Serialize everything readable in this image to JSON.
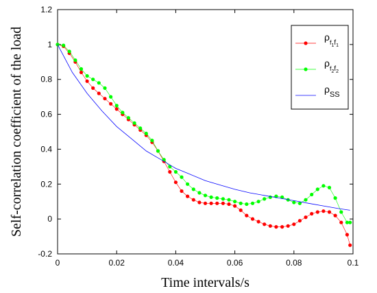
{
  "chart_data": {
    "type": "line",
    "xlabel": "Time intervals/s",
    "ylabel": "Self-correlation coefficient of the load",
    "xlim": [
      0,
      0.1
    ],
    "ylim": [
      -0.2,
      1.2
    ],
    "xticks": [
      "0",
      "0.02",
      "0.04",
      "0.06",
      "0.08",
      "0.1"
    ],
    "yticks": [
      "-0.2",
      "0",
      "0.2",
      "0.4",
      "0.6",
      "0.8",
      "1",
      "1.2"
    ],
    "grid": false,
    "legend_position": "top-right",
    "series": [
      {
        "name": "ρf1f1",
        "legend_main": "ρ",
        "legend_sub": "f",
        "legend_sub2": "1",
        "legend_sub3": "f",
        "legend_sub4": "1",
        "color": "#ff0000",
        "marker": "dot",
        "x": [
          0,
          0.002,
          0.004,
          0.006,
          0.008,
          0.01,
          0.012,
          0.014,
          0.016,
          0.018,
          0.02,
          0.022,
          0.024,
          0.026,
          0.028,
          0.03,
          0.032,
          0.034,
          0.036,
          0.038,
          0.04,
          0.042,
          0.044,
          0.046,
          0.048,
          0.05,
          0.052,
          0.054,
          0.056,
          0.058,
          0.06,
          0.062,
          0.064,
          0.066,
          0.068,
          0.07,
          0.072,
          0.074,
          0.076,
          0.078,
          0.08,
          0.082,
          0.084,
          0.086,
          0.088,
          0.09,
          0.092,
          0.094,
          0.096,
          0.098,
          0.099
        ],
        "y": [
          1.0,
          0.99,
          0.95,
          0.9,
          0.84,
          0.79,
          0.75,
          0.72,
          0.69,
          0.66,
          0.63,
          0.6,
          0.57,
          0.54,
          0.51,
          0.48,
          0.44,
          0.39,
          0.33,
          0.27,
          0.21,
          0.16,
          0.13,
          0.11,
          0.095,
          0.09,
          0.09,
          0.09,
          0.09,
          0.085,
          0.075,
          0.05,
          0.02,
          0.0,
          -0.015,
          -0.03,
          -0.04,
          -0.045,
          -0.045,
          -0.04,
          -0.03,
          -0.01,
          0.01,
          0.03,
          0.04,
          0.045,
          0.04,
          0.02,
          -0.02,
          -0.09,
          -0.15
        ]
      },
      {
        "name": "ρf2f2",
        "legend_main": "ρ",
        "legend_sub": "f",
        "legend_sub2": "2",
        "legend_sub3": "f",
        "legend_sub4": "2",
        "color": "#00ff00",
        "marker": "dot",
        "x": [
          0,
          0.002,
          0.004,
          0.006,
          0.008,
          0.01,
          0.012,
          0.014,
          0.016,
          0.018,
          0.02,
          0.022,
          0.024,
          0.026,
          0.028,
          0.03,
          0.032,
          0.034,
          0.036,
          0.038,
          0.04,
          0.042,
          0.044,
          0.046,
          0.048,
          0.05,
          0.052,
          0.054,
          0.056,
          0.058,
          0.06,
          0.062,
          0.064,
          0.066,
          0.068,
          0.07,
          0.072,
          0.074,
          0.076,
          0.078,
          0.08,
          0.082,
          0.084,
          0.086,
          0.088,
          0.09,
          0.092,
          0.094,
          0.096,
          0.098,
          0.099
        ],
        "y": [
          1.0,
          0.995,
          0.96,
          0.91,
          0.86,
          0.82,
          0.8,
          0.78,
          0.75,
          0.7,
          0.65,
          0.61,
          0.58,
          0.55,
          0.52,
          0.49,
          0.45,
          0.39,
          0.34,
          0.3,
          0.27,
          0.24,
          0.2,
          0.17,
          0.15,
          0.135,
          0.125,
          0.12,
          0.115,
          0.11,
          0.1,
          0.09,
          0.085,
          0.09,
          0.1,
          0.115,
          0.125,
          0.13,
          0.125,
          0.11,
          0.095,
          0.09,
          0.11,
          0.14,
          0.17,
          0.19,
          0.18,
          0.12,
          0.04,
          -0.02,
          -0.02
        ]
      },
      {
        "name": "ρSS",
        "legend_main": "ρ",
        "legend_sub": "SS",
        "color": "#0000ff",
        "marker": "none",
        "x": [
          0,
          0.005,
          0.01,
          0.015,
          0.02,
          0.025,
          0.03,
          0.035,
          0.04,
          0.045,
          0.05,
          0.055,
          0.06,
          0.065,
          0.07,
          0.075,
          0.08,
          0.085,
          0.09,
          0.095,
          0.099
        ],
        "y": [
          1.0,
          0.84,
          0.72,
          0.62,
          0.53,
          0.46,
          0.39,
          0.34,
          0.29,
          0.255,
          0.22,
          0.195,
          0.17,
          0.15,
          0.135,
          0.12,
          0.105,
          0.09,
          0.075,
          0.06,
          0.05
        ]
      }
    ]
  }
}
